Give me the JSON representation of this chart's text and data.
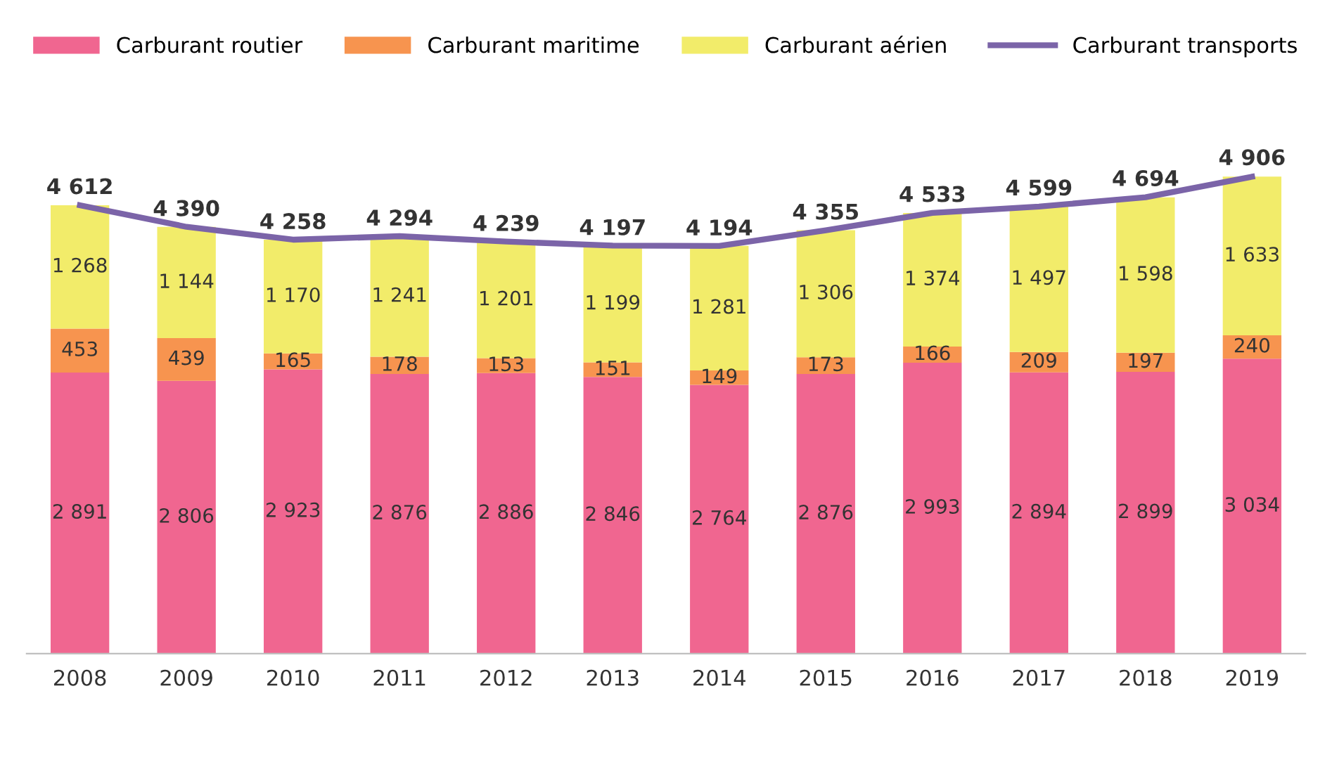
{
  "chart_data": {
    "type": "bar",
    "stacked": true,
    "legend": "top",
    "grid": false,
    "categories": [
      "2008",
      "2009",
      "2010",
      "2011",
      "2012",
      "2013",
      "2014",
      "2015",
      "2016",
      "2017",
      "2018",
      "2019"
    ],
    "series": [
      {
        "name": "Carburant routier",
        "color": "#f06690",
        "values": [
          2891,
          2806,
          2923,
          2876,
          2886,
          2846,
          2764,
          2876,
          2993,
          2894,
          2899,
          3034
        ],
        "value_labels": [
          "2 891",
          "2 806",
          "2 923",
          "2 876",
          "2 886",
          "2 846",
          "2 764",
          "2 876",
          "2 993",
          "2 894",
          "2 899",
          "3 034"
        ]
      },
      {
        "name": "Carburant maritime",
        "color": "#f7944f",
        "values": [
          453,
          439,
          165,
          178,
          153,
          151,
          149,
          173,
          166,
          209,
          197,
          240
        ],
        "value_labels": [
          "453",
          "439",
          "165",
          "178",
          "153",
          "151",
          "149",
          "173",
          "166",
          "209",
          "197",
          "240"
        ]
      },
      {
        "name": "Carburant aérien",
        "color": "#f2ec6a",
        "values": [
          1268,
          1144,
          1170,
          1241,
          1201,
          1199,
          1281,
          1306,
          1374,
          1497,
          1598,
          1633
        ],
        "value_labels": [
          "1 268",
          "1 144",
          "1 170",
          "1 241",
          "1 201",
          "1 199",
          "1 281",
          "1 306",
          "1 374",
          "1 497",
          "1 598",
          "1 633"
        ]
      },
      {
        "name": "Carburant transports",
        "type": "line",
        "color": "#7b64a8",
        "values": [
          4612,
          4390,
          4258,
          4294,
          4239,
          4197,
          4194,
          4355,
          4533,
          4599,
          4694,
          4906
        ],
        "value_labels": [
          "4 612",
          "4 390",
          "4 258",
          "4 294",
          "4 239",
          "4 197",
          "4 194",
          "4 355",
          "4 533",
          "4 599",
          "4 694",
          "4 906"
        ]
      }
    ]
  }
}
